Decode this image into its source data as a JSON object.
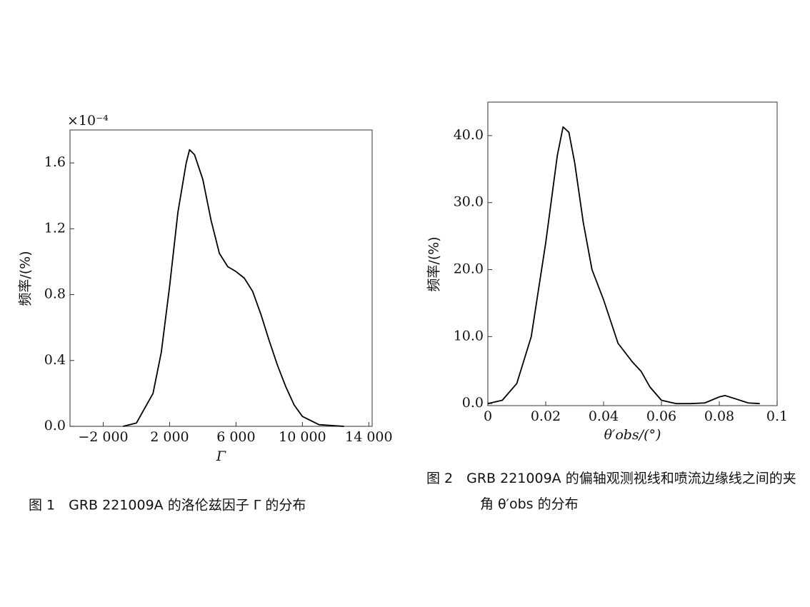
{
  "chart_data": [
    {
      "type": "line",
      "multiplier": "×10⁻⁴",
      "y_label": "频率/(%)",
      "x_label": "Γ",
      "caption": "图 1　GRB 221009A 的洛伦兹因子 Γ 的分布",
      "xlim": [
        -4000,
        14200
      ],
      "ylim": [
        0,
        1.8
      ],
      "xticks": [
        {
          "value": -2000,
          "label": "−2 000"
        },
        {
          "value": 2000,
          "label": "2 000"
        },
        {
          "value": 6000,
          "label": "6 000"
        },
        {
          "value": 10000,
          "label": "10 000"
        },
        {
          "value": 14000,
          "label": "14 000"
        }
      ],
      "yticks": [
        {
          "value": 0,
          "label": "0.0"
        },
        0.4,
        0.8,
        1.2,
        1.6
      ],
      "x": [
        -800,
        0,
        1000,
        1500,
        2000,
        2500,
        3000,
        3200,
        3500,
        4000,
        4500,
        5000,
        5500,
        6000,
        6500,
        7000,
        7500,
        8000,
        8500,
        9000,
        9500,
        10000,
        11000,
        12500
      ],
      "series": [
        {
          "color": "#000000",
          "values": [
            0,
            0.02,
            0.2,
            0.45,
            0.85,
            1.3,
            1.6,
            1.68,
            1.65,
            1.5,
            1.25,
            1.05,
            0.97,
            0.94,
            0.9,
            0.82,
            0.68,
            0.52,
            0.37,
            0.24,
            0.13,
            0.06,
            0.01,
            0
          ]
        }
      ]
    },
    {
      "type": "line",
      "y_label": "频率/(%)",
      "x_label": "θ′obs/(°)",
      "caption": "图 2　GRB 221009A 的偏轴观测视线和喷流边缘线之间的夹角 θ′obs 的分布",
      "xlim": [
        0,
        0.1
      ],
      "ylim": [
        -0.3,
        45
      ],
      "xticks": [
        0,
        0.02,
        0.04,
        0.06,
        0.08,
        0.1
      ],
      "yticks": [
        {
          "value": 0,
          "label": "0.0"
        },
        {
          "value": 10,
          "label": "10.0"
        },
        {
          "value": 20,
          "label": "20.0"
        },
        {
          "value": 30,
          "label": "30.0"
        },
        {
          "value": 40,
          "label": "40.0"
        }
      ],
      "x": [
        0,
        0.005,
        0.01,
        0.015,
        0.02,
        0.024,
        0.026,
        0.028,
        0.03,
        0.033,
        0.036,
        0.04,
        0.045,
        0.05,
        0.053,
        0.056,
        0.06,
        0.065,
        0.07,
        0.075,
        0.08,
        0.082,
        0.085,
        0.09,
        0.094
      ],
      "series": [
        {
          "color": "#000000",
          "values": [
            0,
            0.5,
            3,
            10,
            24,
            37,
            41.3,
            40.5,
            36,
            27,
            20,
            15.5,
            9,
            6.2,
            4.8,
            2.5,
            0.5,
            0,
            0,
            0.1,
            1,
            1.2,
            0.8,
            0.1,
            0
          ]
        }
      ]
    }
  ]
}
